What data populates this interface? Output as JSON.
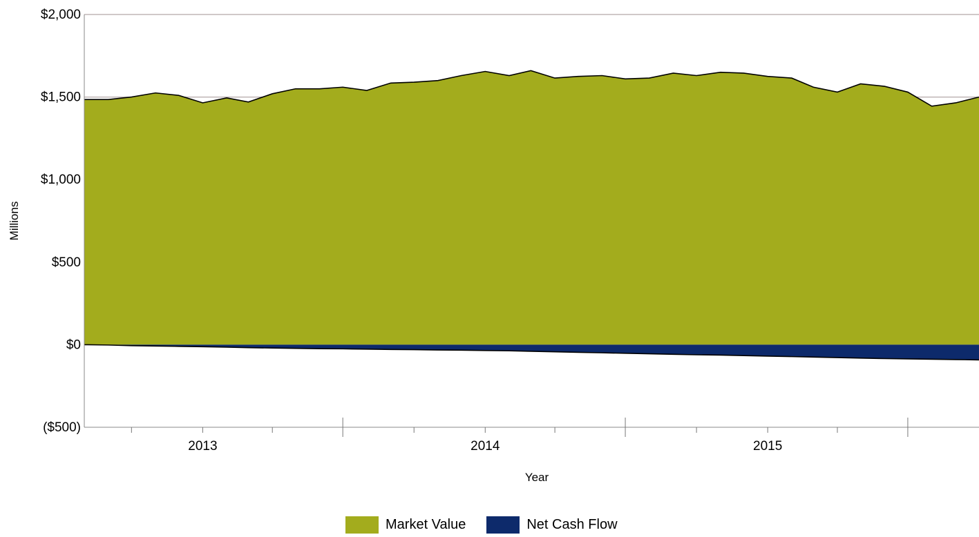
{
  "chart_data": {
    "type": "area",
    "title": "",
    "xlabel": "Year",
    "ylabel": "Millions",
    "ylim": [
      -500,
      2000
    ],
    "y_ticks": [
      -500,
      0,
      500,
      1000,
      1500,
      2000
    ],
    "y_tick_labels": [
      "($500)",
      "$0",
      "$500",
      "$1,000",
      "$1,500",
      "$2,000"
    ],
    "x_range": [
      "2012-07-31",
      "2015-09-30"
    ],
    "x_tick_labels": [
      {
        "date": "2012-12-31",
        "label": "2013"
      },
      {
        "date": "2013-12-31",
        "label": "2014"
      },
      {
        "date": "2014-12-31",
        "label": "2015"
      }
    ],
    "grid": "horizontal",
    "legend_position": "bottom-center",
    "colors": {
      "market_value": "#a3ac1d",
      "net_cash_flow": "#0d2a6b",
      "outline": "#000000"
    },
    "x": [
      "2012-07-31",
      "2012-08-31",
      "2012-09-30",
      "2012-10-31",
      "2012-11-30",
      "2012-12-31",
      "2013-01-31",
      "2013-02-28",
      "2013-03-31",
      "2013-04-30",
      "2013-05-31",
      "2013-06-30",
      "2013-07-31",
      "2013-08-31",
      "2013-09-30",
      "2013-10-31",
      "2013-11-30",
      "2013-12-31",
      "2014-01-31",
      "2014-02-28",
      "2014-03-31",
      "2014-04-30",
      "2014-05-31",
      "2014-06-30",
      "2014-07-31",
      "2014-08-31",
      "2014-09-30",
      "2014-10-31",
      "2014-11-30",
      "2014-12-31",
      "2015-01-31",
      "2015-02-28",
      "2015-03-31",
      "2015-04-30",
      "2015-05-31",
      "2015-06-30",
      "2015-07-31",
      "2015-08-31",
      "2015-09-30"
    ],
    "series": [
      {
        "name": "Market Value",
        "values": [
          1485,
          1485,
          1500,
          1525,
          1510,
          1465,
          1495,
          1470,
          1520,
          1550,
          1550,
          1560,
          1540,
          1585,
          1590,
          1600,
          1630,
          1655,
          1630,
          1660,
          1615,
          1625,
          1630,
          1610,
          1615,
          1645,
          1630,
          1650,
          1645,
          1625,
          1615,
          1560,
          1530,
          1580,
          1565,
          1530,
          1445,
          1465,
          1500
        ]
      },
      {
        "name": "Net Cash Flow",
        "values": [
          0,
          -2,
          -6,
          -8,
          -10,
          -12,
          -15,
          -18,
          -20,
          -22,
          -24,
          -25,
          -27,
          -29,
          -30,
          -32,
          -33,
          -35,
          -37,
          -40,
          -43,
          -46,
          -49,
          -52,
          -55,
          -58,
          -61,
          -63,
          -66,
          -69,
          -72,
          -75,
          -78,
          -81,
          -84,
          -86,
          -88,
          -90,
          -92
        ]
      }
    ]
  }
}
